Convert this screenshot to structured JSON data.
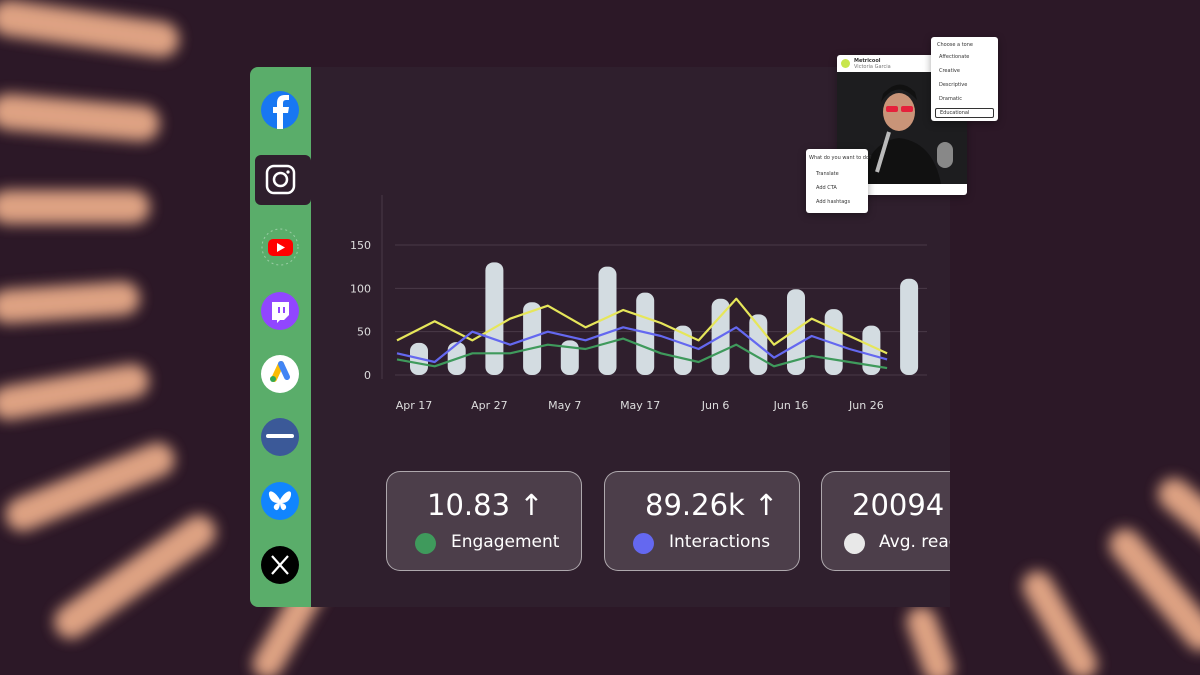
{
  "chart_data": {
    "type": "bar+line",
    "categories": [
      "Apr 17",
      null,
      "Apr 27",
      null,
      "May 7",
      null,
      "May 17",
      null,
      "Jun 6",
      null,
      "Jun 16",
      null,
      "Jun 26",
      null
    ],
    "series": [
      {
        "kind": "bar",
        "color": "#d3dce1",
        "values": [
          37,
          38,
          130,
          84,
          40,
          125,
          95,
          57,
          88,
          70,
          99,
          76,
          57,
          111
        ]
      },
      {
        "kind": "line",
        "color": "#e6e65a",
        "values": [
          40,
          62,
          40,
          65,
          80,
          55,
          75,
          60,
          40,
          88,
          35,
          65,
          45,
          25
        ]
      },
      {
        "kind": "line",
        "color": "#6468f0",
        "values": [
          25,
          15,
          50,
          35,
          50,
          40,
          55,
          45,
          30,
          55,
          20,
          45,
          30,
          18
        ]
      },
      {
        "kind": "line",
        "color": "#3f9a5c",
        "values": [
          18,
          10,
          25,
          25,
          35,
          30,
          42,
          25,
          15,
          35,
          10,
          22,
          15,
          8
        ]
      }
    ],
    "ylim": [
      0,
      150
    ],
    "yticks": [
      0,
      50,
      100,
      150
    ],
    "grid": true
  },
  "stats": [
    {
      "value": "10.83",
      "label": "Engagement",
      "color": "#3f9a5c"
    },
    {
      "value": "89.26k",
      "label": "Interactions",
      "color": "#6468f0"
    },
    {
      "value": "20094",
      "label": "Avg. reach",
      "color": "#e8e8e8"
    }
  ],
  "post_popup": {
    "brand": "Metricool",
    "author": "Victoria Garcia"
  },
  "tone_popup": {
    "title": "Choose a tone",
    "options": [
      "Affectionate",
      "Creative",
      "Descriptive",
      "Dramatic",
      "Educational"
    ]
  },
  "action_popup": {
    "title": "What do you want to do?",
    "options": [
      "Translate",
      "Add CTA",
      "Add hashtags"
    ]
  }
}
